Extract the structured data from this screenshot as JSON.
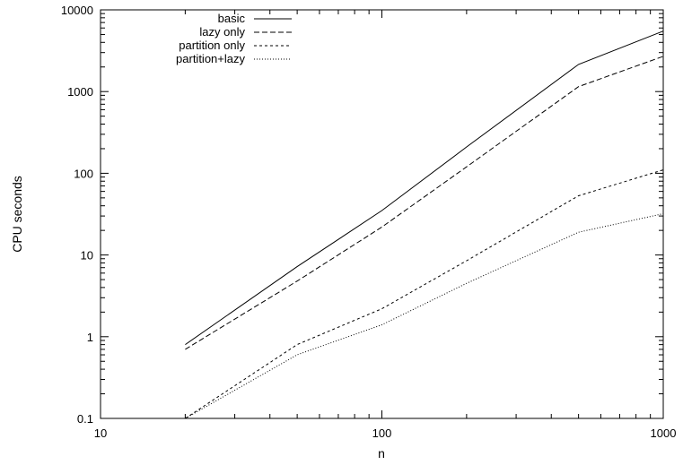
{
  "chart_data": {
    "type": "line",
    "title": "",
    "xlabel": "n",
    "ylabel": "CPU seconds",
    "x_scale": "log",
    "y_scale": "log",
    "xlim": [
      10,
      1000
    ],
    "ylim": [
      0.1,
      10000
    ],
    "grid": false,
    "legend_position": "top-left",
    "x_ticks": [
      {
        "value": 10,
        "label": "10"
      },
      {
        "value": 100,
        "label": "100"
      },
      {
        "value": 1000,
        "label": "1000"
      }
    ],
    "y_ticks": [
      {
        "value": 0.1,
        "label": "0.1"
      },
      {
        "value": 1,
        "label": "1"
      },
      {
        "value": 10,
        "label": "10"
      },
      {
        "value": 100,
        "label": "100"
      },
      {
        "value": 1000,
        "label": "1000"
      },
      {
        "value": 10000,
        "label": "10000"
      }
    ],
    "series": [
      {
        "name": "basic",
        "style": "solid",
        "x": [
          20,
          50,
          100,
          200,
          500,
          1000
        ],
        "y": [
          0.8,
          7.2,
          35,
          210,
          2150,
          5500
        ]
      },
      {
        "name": "lazy only",
        "style": "dashed",
        "x": [
          20,
          50,
          100,
          200,
          500,
          1000
        ],
        "y": [
          0.7,
          4.8,
          22,
          120,
          1150,
          2700
        ]
      },
      {
        "name": "partition only",
        "style": "short-dashed",
        "x": [
          20,
          50,
          100,
          200,
          500,
          1000
        ],
        "y": [
          0.1,
          0.8,
          2.2,
          8.5,
          53,
          110
        ]
      },
      {
        "name": "partition+lazy",
        "style": "dotted",
        "x": [
          20,
          50,
          100,
          200,
          500,
          1000
        ],
        "y": [
          0.1,
          0.6,
          1.4,
          4.5,
          19,
          32
        ]
      }
    ]
  }
}
